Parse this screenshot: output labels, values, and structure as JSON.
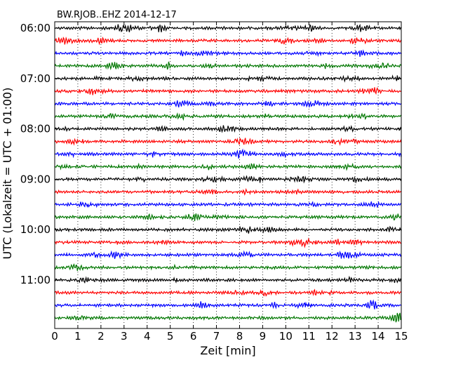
{
  "chart_data": {
    "type": "line",
    "title": "BW.RJOB..EHZ 2014-12-17",
    "xlabel": "Zeit  [min]",
    "ylabel": "UTC (Lokalzeit = UTC + 01:00)",
    "xlim": [
      0,
      15
    ],
    "x_ticks": [
      0,
      1,
      2,
      3,
      4,
      5,
      6,
      7,
      8,
      9,
      10,
      11,
      12,
      13,
      14,
      15
    ],
    "x_grid": true,
    "y_ticks": [
      "06:00",
      "07:00",
      "08:00",
      "09:00",
      "10:00",
      "11:00"
    ],
    "rows_per_hour": 4,
    "row_count": 24,
    "series_colors": [
      "#000000",
      "#ff0000",
      "#0000ff",
      "#007700"
    ]
  }
}
